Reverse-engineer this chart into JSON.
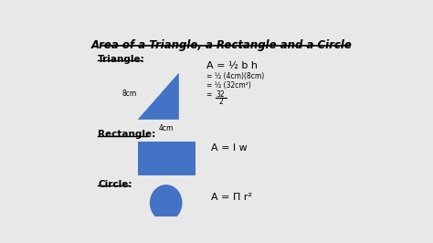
{
  "title": "Area of a Triangle, a Rectangle and a Circle",
  "background_color": "#e8e8e8",
  "shape_color": "#4472c4",
  "text_color": "#000000",
  "triangle_label": "Triangle:",
  "rectangle_label": "Rectangle:",
  "circle_label": "Circle:",
  "triangle_formula": "A = ½ b h",
  "triangle_sub1": "= ½ (4cm)(8cm)",
  "triangle_sub2": "= ½ (32cm²)",
  "rectangle_formula": "A = l w",
  "circle_formula": "A = Π r²",
  "side_label_8": "8cm",
  "side_label_4": "4cm"
}
